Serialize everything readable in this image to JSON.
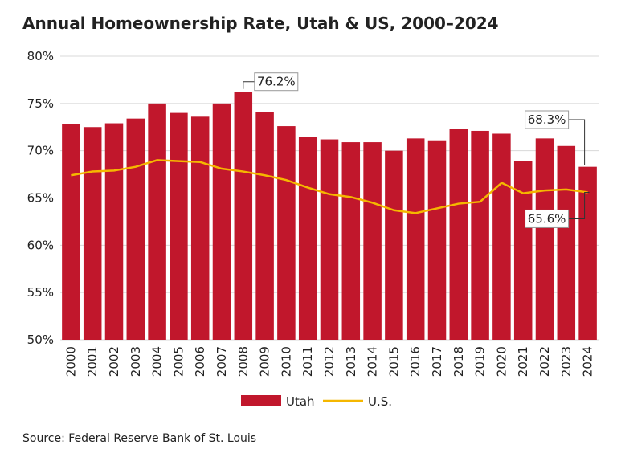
{
  "chart_data": {
    "type": "bar-line",
    "title": "Annual Homeownership Rate, Utah & US, 2000–2024",
    "source": "Source: Federal Reserve Bank of St. Louis",
    "categories": [
      "2000",
      "2001",
      "2002",
      "2003",
      "2004",
      "2005",
      "2006",
      "2007",
      "2008",
      "2009",
      "2010",
      "2011",
      "2012",
      "2013",
      "2014",
      "2015",
      "2016",
      "2017",
      "2018",
      "2019",
      "2020",
      "2021",
      "2022",
      "2023",
      "2024"
    ],
    "series": [
      {
        "name": "Utah",
        "type": "bar",
        "color": "#c1172c",
        "values": [
          72.8,
          72.5,
          72.9,
          73.4,
          75.0,
          74.0,
          73.6,
          75.0,
          76.2,
          74.1,
          72.6,
          71.5,
          71.2,
          70.9,
          70.9,
          70.0,
          71.3,
          71.1,
          72.3,
          72.1,
          71.8,
          68.9,
          71.3,
          70.5,
          68.3
        ],
        "value_labels": [
          null,
          null,
          null,
          null,
          null,
          null,
          null,
          null,
          "76.2%",
          null,
          null,
          null,
          null,
          null,
          null,
          null,
          null,
          null,
          null,
          null,
          null,
          null,
          null,
          null,
          "68.3%"
        ]
      },
      {
        "name": "U.S.",
        "type": "line",
        "color": "#f5b700",
        "values": [
          67.4,
          67.8,
          67.9,
          68.3,
          69.0,
          68.9,
          68.8,
          68.1,
          67.8,
          67.4,
          66.9,
          66.1,
          65.4,
          65.1,
          64.5,
          63.7,
          63.4,
          63.9,
          64.4,
          64.6,
          66.6,
          65.5,
          65.8,
          65.9,
          65.6
        ],
        "value_labels": [
          null,
          null,
          null,
          null,
          null,
          null,
          null,
          null,
          null,
          null,
          null,
          null,
          null,
          null,
          null,
          null,
          null,
          null,
          null,
          null,
          null,
          null,
          null,
          null,
          "65.6%"
        ]
      }
    ],
    "ylim": [
      50,
      80
    ],
    "yticks": [
      {
        "value": 50,
        "label": "50%"
      },
      {
        "value": 55,
        "label": "55%"
      },
      {
        "value": 60,
        "label": "60%"
      },
      {
        "value": 65,
        "label": "65%"
      },
      {
        "value": 70,
        "label": "70%"
      },
      {
        "value": 75,
        "label": "75%"
      },
      {
        "value": 80,
        "label": "80%"
      }
    ],
    "grid": true
  }
}
